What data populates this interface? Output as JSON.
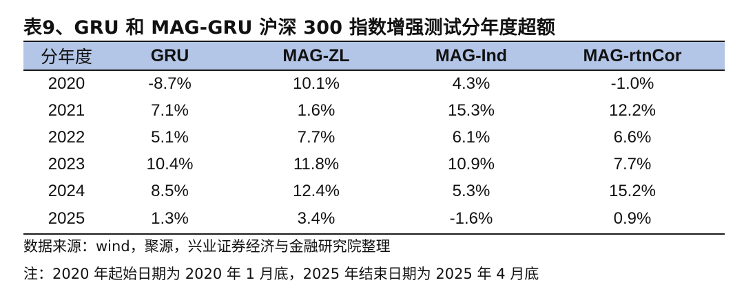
{
  "title": "表9、GRU 和 MAG-GRU 沪深 300 指数增强测试分年度超额",
  "table": {
    "headers": [
      "分年度",
      "GRU",
      "MAG-ZL",
      "MAG-Ind",
      "MAG-rtnCor"
    ],
    "rows": [
      [
        "2020",
        "-8.7%",
        "10.1%",
        "4.3%",
        "-1.0%"
      ],
      [
        "2021",
        "7.1%",
        "1.6%",
        "15.3%",
        "12.2%"
      ],
      [
        "2022",
        "5.1%",
        "7.7%",
        "6.1%",
        "6.6%"
      ],
      [
        "2023",
        "10.4%",
        "11.8%",
        "10.9%",
        "7.7%"
      ],
      [
        "2024",
        "8.5%",
        "12.4%",
        "5.3%",
        "15.2%"
      ],
      [
        "2025",
        "1.3%",
        "3.4%",
        "-1.6%",
        "0.9%"
      ]
    ]
  },
  "notes": {
    "source": "数据来源：wind，聚源，兴业证券经济与金融研究院整理",
    "remark": "注：2020 年起始日期为 2020 年 1 月底，2025 年结束日期为 2025 年 4 月底"
  },
  "colors": {
    "header_background": "#b4c6e7",
    "rule": "#1a1a1a",
    "text": "#111111"
  }
}
